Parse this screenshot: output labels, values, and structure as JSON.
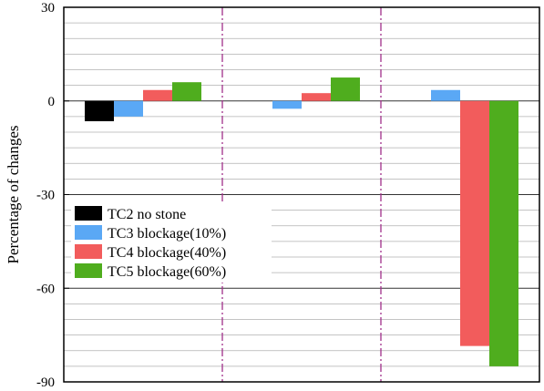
{
  "chart_data": {
    "type": "bar",
    "title": "",
    "xlabel": "",
    "ylabel": "Percentage of changes",
    "ylim": [
      -90,
      30
    ],
    "yticks": [
      30,
      0,
      -30,
      -60,
      -90
    ],
    "yticks_labels": [
      "30",
      "0",
      "-30",
      "-60",
      "-90"
    ],
    "minor_gridlines": true,
    "legend_position": "lower-left",
    "groups": 3,
    "group_separator_color": "#a0308a",
    "series": [
      {
        "name": "TC2  no stone",
        "color": "#000000",
        "values": [
          -6.5,
          null,
          null
        ]
      },
      {
        "name": "TC3  blockage(10%)",
        "color": "#5aa8f5",
        "values": [
          -5,
          -2.5,
          3.5
        ]
      },
      {
        "name": "TC4  blockage(40%)",
        "color": "#f25c5c",
        "values": [
          3.5,
          2.5,
          -78.5
        ]
      },
      {
        "name": "TC5  blockage(60%)",
        "color": "#4fad1e",
        "values": [
          6,
          7.5,
          -85
        ]
      }
    ]
  }
}
